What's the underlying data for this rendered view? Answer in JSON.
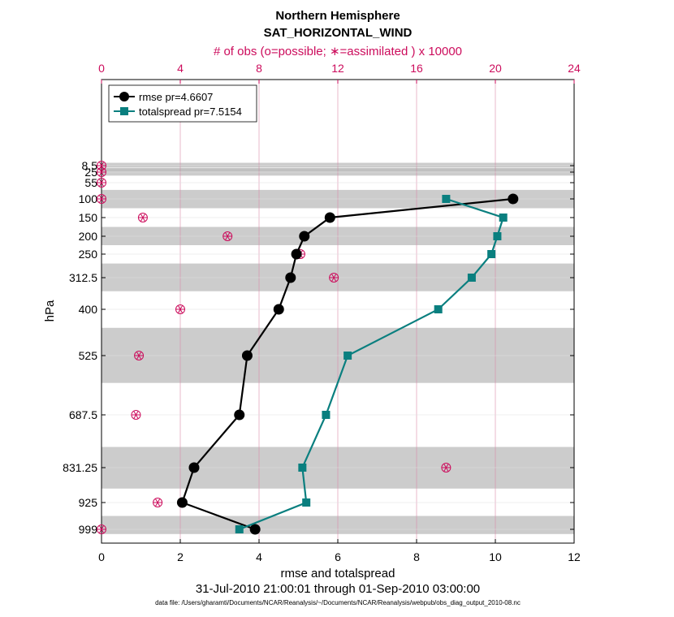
{
  "chart_data": {
    "type": "line",
    "title": "Northern Hemisphere",
    "subtitle": "SAT_HORIZONTAL_WIND",
    "top_axis_label": "# of obs (o=possible; ∗=assimilated ) x 10000",
    "xlabel": "rmse and totalspread",
    "ylabel": "hPa",
    "date_range": "31-Jul-2010 21:00:01 through 01-Sep-2010 03:00:00",
    "footnote": "data file: /Users/gharamti/Documents/NCAR/Reanalysis/~/Documents/NCAR/Reanalysis/webpub/obs_diag_output_2010-08.nc",
    "xlim": [
      0,
      12
    ],
    "x_ticks": [
      "0",
      "2",
      "4",
      "6",
      "8",
      "10",
      "12"
    ],
    "top_xlim": [
      0,
      24
    ],
    "top_ticks": [
      "0",
      "4",
      "8",
      "12",
      "16",
      "20",
      "24"
    ],
    "levels": [
      8.5,
      25,
      55,
      100,
      150,
      200,
      250,
      312.5,
      400,
      525,
      687.5,
      831.25,
      925,
      999
    ],
    "level_labels": [
      "8.5",
      "25",
      "55",
      "100",
      "150",
      "200",
      "250",
      "312.5",
      "400",
      "525",
      "687.5",
      "831.25",
      "925",
      "999"
    ],
    "shaded_bands_hpa": [
      [
        5,
        12
      ],
      [
        15,
        35
      ],
      [
        75,
        125
      ],
      [
        175,
        225
      ],
      [
        275,
        350
      ],
      [
        450,
        600
      ],
      [
        775,
        887.5
      ],
      [
        962,
        1012
      ]
    ],
    "series": [
      {
        "name": "rmse pr=4.6607",
        "color": "#000000",
        "marker": "circle",
        "points": [
          {
            "p": 100,
            "v": 10.45
          },
          {
            "p": 150,
            "v": 5.8
          },
          {
            "p": 200,
            "v": 5.15
          },
          {
            "p": 250,
            "v": 4.95
          },
          {
            "p": 312.5,
            "v": 4.8
          },
          {
            "p": 400,
            "v": 4.5
          },
          {
            "p": 525,
            "v": 3.7
          },
          {
            "p": 687.5,
            "v": 3.5
          },
          {
            "p": 831.25,
            "v": 2.35
          },
          {
            "p": 925,
            "v": 2.05
          },
          {
            "p": 999,
            "v": 3.9
          }
        ]
      },
      {
        "name": "totalspread pr=7.5154",
        "color": "#0a7f7f",
        "marker": "square",
        "points": [
          {
            "p": 100,
            "v": 8.75
          },
          {
            "p": 150,
            "v": 10.2
          },
          {
            "p": 200,
            "v": 10.05
          },
          {
            "p": 250,
            "v": 9.9
          },
          {
            "p": 312.5,
            "v": 9.4
          },
          {
            "p": 400,
            "v": 8.55
          },
          {
            "p": 525,
            "v": 6.25
          },
          {
            "p": 687.5,
            "v": 5.7
          },
          {
            "p": 831.25,
            "v": 5.1
          },
          {
            "p": 925,
            "v": 5.2
          },
          {
            "p": 999,
            "v": 3.5
          }
        ]
      }
    ],
    "obs_counts": [
      {
        "p": 8.5,
        "v": 0
      },
      {
        "p": 25,
        "v": 0
      },
      {
        "p": 55,
        "v": 0
      },
      {
        "p": 100,
        "v": 0
      },
      {
        "p": 150,
        "v": 2.1
      },
      {
        "p": 200,
        "v": 6.4
      },
      {
        "p": 250,
        "v": 10.1
      },
      {
        "p": 312.5,
        "v": 11.8
      },
      {
        "p": 400,
        "v": 4.0
      },
      {
        "p": 525,
        "v": 1.9
      },
      {
        "p": 687.5,
        "v": 1.75
      },
      {
        "p": 831.25,
        "v": 17.5
      },
      {
        "p": 925,
        "v": 2.85
      },
      {
        "p": 999,
        "v": 0
      }
    ],
    "obs_color": "#cc0c5c"
  }
}
